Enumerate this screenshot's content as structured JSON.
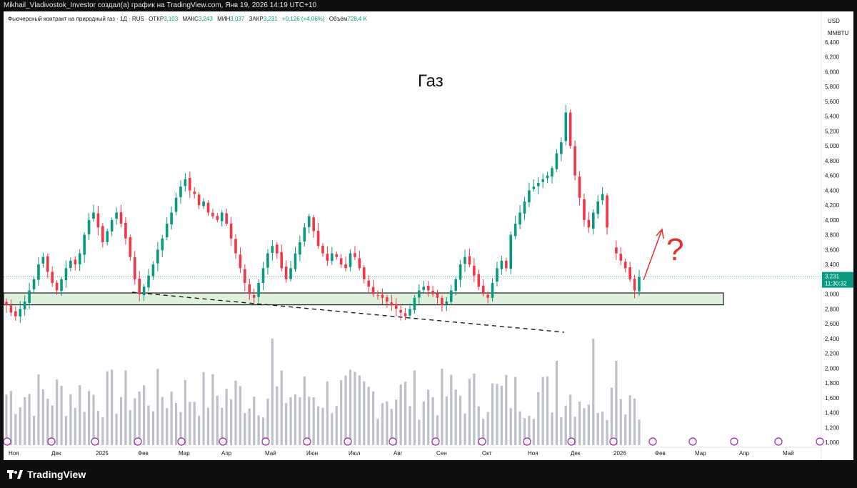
{
  "header": {
    "text": "Mikhail_Vladivostok_Investor создал(а) график на TradingView.com, Янв 19, 2026 14:19 UTC+10"
  },
  "legend": {
    "symbol": "Фьючерсный контракт на природный газ · 1Д · RUS",
    "open_label": "ОТКР",
    "open_value": "3,103",
    "high_label": "МАКС",
    "high_value": "3,243",
    "low_label": "МИН",
    "low_value": "3,037",
    "close_label": "ЗАКР",
    "close_value": "3,231",
    "change": "+0,126 (+4,06%)",
    "volume_label": "Объём",
    "volume_value": "728,4 K"
  },
  "footer": {
    "brand": "TradingView"
  },
  "chart_data": {
    "type": "candlestick",
    "title": "Газ",
    "annotation": "?",
    "currency": "USD",
    "unit": "MMBTU",
    "y_ticks": [
      "6,400",
      "6,200",
      "6,000",
      "5,800",
      "5,600",
      "5,400",
      "5,200",
      "5,000",
      "4,800",
      "4,600",
      "4,400",
      "4,200",
      "4,000",
      "3,800",
      "3,600",
      "3,400",
      "3,200",
      "3,000",
      "2,800",
      "2,600",
      "2,400",
      "2,200",
      "2,000",
      "1,800",
      "1,600",
      "1,400",
      "1,200",
      "1,000"
    ],
    "price_range": [
      2.4,
      6.4
    ],
    "last_price": "3,231",
    "countdown": "11:30:32",
    "x_ticks": [
      "Ноя",
      "Дек",
      "2025",
      "Фев",
      "Мар",
      "Апр",
      "Май",
      "Июн",
      "Июл",
      "Авг",
      "Сен",
      "Окт",
      "Ноя",
      "Дек",
      "2026",
      "Фев",
      "Мар",
      "Апр",
      "Май"
    ],
    "support_zone": [
      2.855,
      3.015
    ],
    "close_series": [
      2.85,
      2.75,
      2.7,
      2.8,
      2.9,
      3.05,
      3.2,
      3.4,
      3.5,
      3.3,
      3.15,
      3.05,
      3.2,
      3.35,
      3.45,
      3.4,
      3.55,
      3.8,
      4.0,
      4.1,
      3.9,
      3.7,
      3.85,
      4.0,
      4.1,
      3.95,
      3.75,
      3.5,
      3.2,
      3.0,
      3.1,
      3.25,
      3.4,
      3.6,
      3.75,
      3.95,
      4.1,
      4.3,
      4.45,
      4.55,
      4.4,
      4.35,
      4.2,
      4.25,
      4.1,
      4.05,
      4.0,
      4.1,
      3.95,
      3.75,
      3.55,
      3.35,
      3.15,
      3.0,
      2.95,
      3.15,
      3.35,
      3.55,
      3.65,
      3.55,
      3.35,
      3.2,
      3.35,
      3.55,
      3.7,
      3.9,
      4.05,
      3.85,
      3.65,
      3.55,
      3.45,
      3.55,
      3.5,
      3.4,
      3.35,
      3.55,
      3.5,
      3.35,
      3.2,
      3.1,
      3.0,
      2.98,
      2.95,
      2.9,
      2.85,
      2.8,
      2.75,
      2.7,
      2.8,
      2.95,
      3.05,
      3.1,
      3.05,
      3.0,
      2.95,
      2.85,
      2.9,
      3.05,
      3.2,
      3.4,
      3.5,
      3.4,
      3.25,
      3.1,
      3.0,
      2.95,
      3.15,
      3.35,
      3.45,
      3.35,
      3.8,
      3.95,
      4.1,
      4.25,
      4.4,
      4.45,
      4.5,
      4.55,
      4.6,
      4.7,
      4.9,
      5.05,
      5.45,
      5.0,
      4.6,
      4.3,
      4.0,
      3.9,
      4.1,
      4.25,
      4.35,
      3.9,
      null,
      3.55,
      3.45,
      3.35,
      3.2,
      3.05,
      3.231
    ],
    "volume_range_k": [
      1000,
      6400
    ],
    "volume_note": "volume histogram in thousands, plotted on lower scale"
  }
}
